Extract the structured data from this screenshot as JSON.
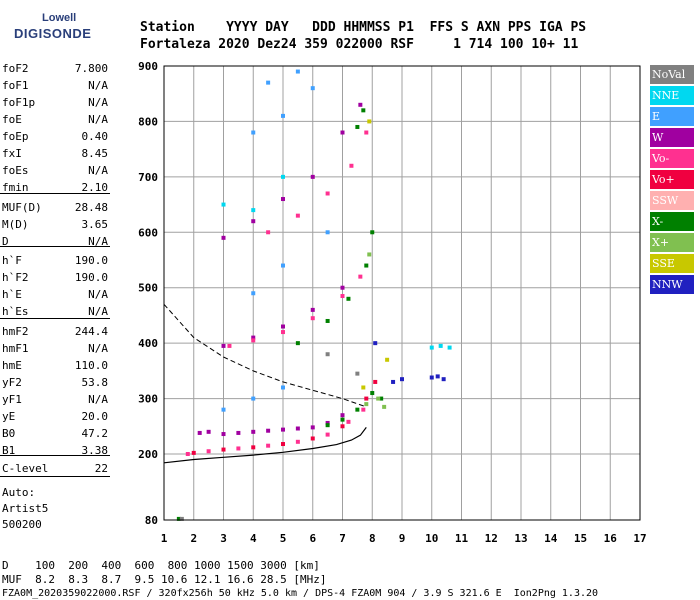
{
  "header": {
    "row1": "Station    YYYY DAY   DDD HHMMSS P1  FFS S AXN PPS IGA PS",
    "row2": "Fortaleza 2020 Dez24 359 022000 RSF     1 714 100 10+ 11"
  },
  "logo": {
    "top": "Lowell",
    "bottom": "DIGISONDE"
  },
  "params": [
    {
      "name": "foF2",
      "value": "7.800"
    },
    {
      "name": "foF1",
      "value": "N/A"
    },
    {
      "name": "foF1p",
      "value": "N/A"
    },
    {
      "name": "foE",
      "value": "N/A"
    },
    {
      "name": "foEp",
      "value": "0.40"
    },
    {
      "name": "fxI",
      "value": "8.45"
    },
    {
      "name": "foEs",
      "value": "N/A"
    },
    {
      "name": "fmin",
      "value": "2.10"
    },
    {
      "name": "MUF(D)",
      "value": "28.48"
    },
    {
      "name": "M(D)",
      "value": "3.65"
    },
    {
      "name": "D",
      "value": "N/A"
    },
    {
      "name": "h`F",
      "value": "190.0"
    },
    {
      "name": "h`F2",
      "value": "190.0"
    },
    {
      "name": "h`E",
      "value": "N/A"
    },
    {
      "name": "h`Es",
      "value": "N/A"
    },
    {
      "name": "hmF2",
      "value": "244.4"
    },
    {
      "name": "hmF1",
      "value": "N/A"
    },
    {
      "name": "hmE",
      "value": "110.0"
    },
    {
      "name": "yF2",
      "value": "53.8"
    },
    {
      "name": "yF1",
      "value": "N/A"
    },
    {
      "name": "yE",
      "value": "20.0"
    },
    {
      "name": "B0",
      "value": "47.2"
    },
    {
      "name": "B1",
      "value": "3.38"
    },
    {
      "name": "C-level",
      "value": "22"
    }
  ],
  "auto": {
    "line1": "Auto:",
    "line2": "Artist5",
    "line3": "500200"
  },
  "legend": [
    {
      "label": "NoVal",
      "color": "#808080"
    },
    {
      "label": "NNE",
      "color": "#00d8f0"
    },
    {
      "label": "E",
      "color": "#40a0ff"
    },
    {
      "label": "W",
      "color": "#a000a0"
    },
    {
      "label": "Vo-",
      "color": "#ff3090"
    },
    {
      "label": "Vo+",
      "color": "#f00040"
    },
    {
      "label": "SSW",
      "color": "#ffb0b0"
    },
    {
      "label": "X-",
      "color": "#008000"
    },
    {
      "label": "X+",
      "color": "#80c050"
    },
    {
      "label": "SSE",
      "color": "#c8c800"
    },
    {
      "label": "NNW",
      "color": "#2020c0"
    }
  ],
  "footer": {
    "row1": "D    100  200  400  600  800 1000 1500 3000 [km]",
    "row2": "MUF  8.2  8.3  8.7  9.5 10.6 12.1 16.6 28.5 [MHz]",
    "row3": "FZA0M_2020359022000.RSF / 320fx256h 50 kHz 5.0 km / DPS-4 FZA0M 904 / 3.9 S 321.6 E  Ion2Png 1.3.20"
  },
  "chart_data": {
    "type": "scatter",
    "xlim": [
      1,
      17
    ],
    "ylim": [
      80,
      900
    ],
    "x_ticks": [
      1,
      2,
      3,
      4,
      5,
      6,
      7,
      8,
      9,
      10,
      11,
      12,
      13,
      14,
      15,
      16,
      17
    ],
    "y_ticks": [
      80,
      200,
      300,
      400,
      500,
      600,
      700,
      800,
      900
    ],
    "grid": true,
    "legend_position": "right",
    "traces": [
      {
        "name": "W",
        "points": [
          [
            2.2,
            238
          ],
          [
            3.0,
            236
          ],
          [
            4.0,
            240
          ],
          [
            5.0,
            244
          ],
          [
            6.0,
            248
          ],
          [
            7.0,
            270
          ],
          [
            2.5,
            240
          ],
          [
            3.5,
            238
          ],
          [
            4.5,
            242
          ],
          [
            5.5,
            246
          ],
          [
            6.5,
            256
          ],
          [
            3.0,
            395
          ],
          [
            4.0,
            410
          ],
          [
            5.0,
            430
          ],
          [
            6.0,
            460
          ],
          [
            7.0,
            500
          ],
          [
            3.0,
            590
          ],
          [
            4.0,
            620
          ],
          [
            5.0,
            660
          ],
          [
            6.0,
            700
          ],
          [
            7.0,
            780
          ],
          [
            7.6,
            830
          ]
        ]
      },
      {
        "name": "Vo-",
        "points": [
          [
            1.8,
            200
          ],
          [
            2.5,
            205
          ],
          [
            3.5,
            210
          ],
          [
            4.5,
            215
          ],
          [
            5.5,
            222
          ],
          [
            6.5,
            235
          ],
          [
            7.2,
            258
          ],
          [
            7.7,
            280
          ],
          [
            3.2,
            395
          ],
          [
            4.0,
            405
          ],
          [
            5.0,
            420
          ],
          [
            6.0,
            445
          ],
          [
            7.0,
            485
          ],
          [
            7.6,
            520
          ],
          [
            4.5,
            600
          ],
          [
            5.5,
            630
          ],
          [
            6.5,
            670
          ],
          [
            7.3,
            720
          ],
          [
            7.8,
            780
          ]
        ]
      },
      {
        "name": "Vo+",
        "points": [
          [
            2.0,
            202
          ],
          [
            3.0,
            208
          ],
          [
            4.0,
            212
          ],
          [
            5.0,
            218
          ],
          [
            6.0,
            228
          ],
          [
            7.0,
            250
          ],
          [
            7.8,
            300
          ],
          [
            8.1,
            330
          ]
        ]
      },
      {
        "name": "X-",
        "points": [
          [
            6.5,
            252
          ],
          [
            7.0,
            262
          ],
          [
            7.5,
            280
          ],
          [
            8.0,
            310
          ],
          [
            8.3,
            300
          ],
          [
            5.5,
            400
          ],
          [
            6.5,
            440
          ],
          [
            7.2,
            480
          ],
          [
            7.8,
            540
          ],
          [
            8.0,
            600
          ],
          [
            7.5,
            790
          ],
          [
            7.7,
            820
          ],
          [
            1.5,
            82
          ]
        ]
      },
      {
        "name": "X+",
        "points": [
          [
            7.8,
            290
          ],
          [
            8.2,
            300
          ],
          [
            8.4,
            285
          ],
          [
            7.9,
            560
          ]
        ]
      },
      {
        "name": "NNW",
        "points": [
          [
            10.0,
            338
          ],
          [
            10.2,
            340
          ],
          [
            10.4,
            335
          ],
          [
            9.0,
            335
          ],
          [
            8.7,
            330
          ],
          [
            8.1,
            400
          ]
        ]
      },
      {
        "name": "NNE",
        "points": [
          [
            10.0,
            392
          ],
          [
            10.3,
            395
          ],
          [
            10.6,
            392
          ],
          [
            3.0,
            650
          ],
          [
            4.0,
            640
          ],
          [
            5.0,
            700
          ]
        ]
      },
      {
        "name": "E",
        "points": [
          [
            3.0,
            280
          ],
          [
            4.0,
            300
          ],
          [
            5.0,
            320
          ],
          [
            4.0,
            490
          ],
          [
            5.0,
            540
          ],
          [
            6.5,
            600
          ],
          [
            4.0,
            780
          ],
          [
            5.0,
            810
          ],
          [
            6.0,
            860
          ],
          [
            4.5,
            870
          ],
          [
            5.5,
            890
          ]
        ]
      },
      {
        "name": "SSE",
        "points": [
          [
            7.9,
            800
          ],
          [
            8.5,
            370
          ],
          [
            7.7,
            320
          ]
        ]
      },
      {
        "name": "NoVal",
        "points": [
          [
            6.5,
            380
          ],
          [
            7.5,
            345
          ],
          [
            1.6,
            82
          ]
        ]
      }
    ],
    "dashed_curve": [
      [
        1,
        470
      ],
      [
        2,
        410
      ],
      [
        3,
        375
      ],
      [
        4,
        350
      ],
      [
        5,
        330
      ],
      [
        6,
        315
      ],
      [
        7,
        300
      ],
      [
        7.8,
        285
      ]
    ],
    "solid_curve": [
      [
        1,
        184
      ],
      [
        2,
        190
      ],
      [
        3,
        194
      ],
      [
        4,
        198
      ],
      [
        5,
        203
      ],
      [
        6,
        210
      ],
      [
        6.8,
        217
      ],
      [
        7.3,
        225
      ],
      [
        7.6,
        234
      ],
      [
        7.8,
        248
      ]
    ]
  }
}
